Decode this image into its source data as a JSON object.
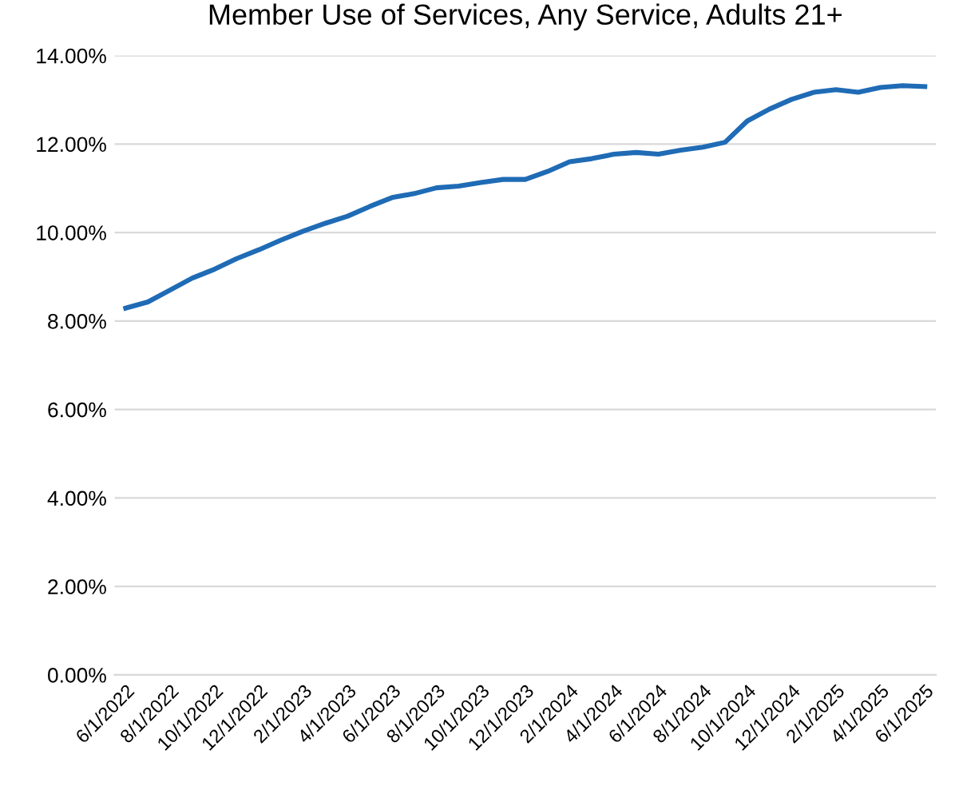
{
  "chart_data": {
    "type": "line",
    "title": "Member Use of Services, Any Service, Adults 21+",
    "categories": [
      "6/1/2022",
      null,
      "8/1/2022",
      null,
      "10/1/2022",
      null,
      "12/1/2022",
      null,
      "2/1/2023",
      null,
      "4/1/2023",
      null,
      "6/1/2023",
      null,
      "8/1/2023",
      null,
      "10/1/2023",
      null,
      "12/1/2023",
      null,
      "2/1/2024",
      null,
      "4/1/2024",
      null,
      "6/1/2024",
      null,
      "8/1/2024",
      null,
      "10/1/2024",
      null,
      "12/1/2024",
      null,
      "2/1/2025",
      null,
      "4/1/2025",
      null,
      "6/1/2025"
    ],
    "series": [
      {
        "color": "#1f6bb5",
        "values": [
          8.29,
          8.43,
          8.7,
          8.97,
          9.17,
          9.41,
          9.61,
          9.83,
          10.03,
          10.21,
          10.37,
          10.59,
          10.79,
          10.88,
          11.01,
          11.05,
          11.13,
          11.2,
          11.2,
          11.38,
          11.6,
          11.67,
          11.77,
          11.81,
          11.77,
          11.86,
          11.93,
          12.04,
          12.52,
          12.79,
          13.01,
          13.17,
          13.23,
          13.17,
          13.28,
          13.32,
          13.3
        ]
      }
    ],
    "ylim": [
      0,
      14
    ],
    "yticks": [
      {
        "value": 0,
        "label": "0.00%"
      },
      {
        "value": 2,
        "label": "2.00%"
      },
      {
        "value": 4,
        "label": "4.00%"
      },
      {
        "value": 6,
        "label": "6.00%"
      },
      {
        "value": 8,
        "label": "8.00%"
      },
      {
        "value": 10,
        "label": "10.00%"
      },
      {
        "value": 12,
        "label": "12.00%"
      },
      {
        "value": 14,
        "label": "14.00%"
      }
    ],
    "grid": "y",
    "legend": false,
    "marker": "none",
    "line_style": "solid"
  }
}
